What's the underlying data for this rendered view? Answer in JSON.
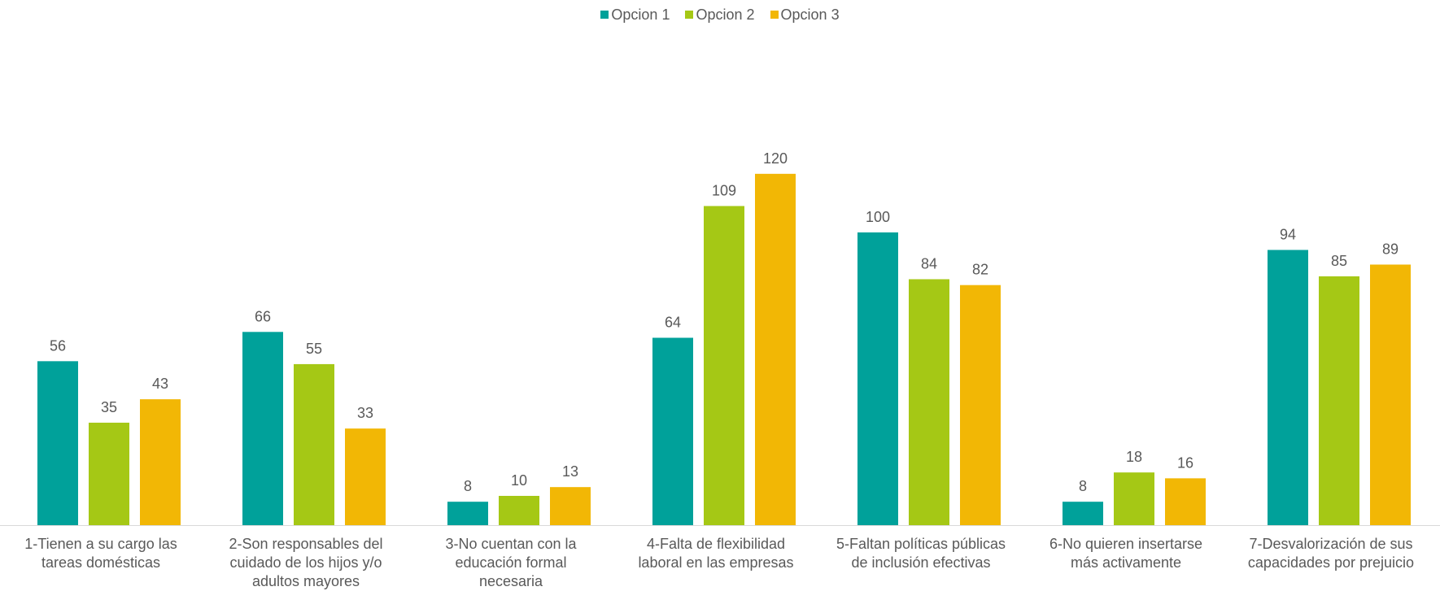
{
  "chart_data": {
    "type": "bar",
    "categories": [
      [
        "1-Tienen a su cargo las",
        "tareas domésticas"
      ],
      [
        "2-Son responsables del",
        "cuidado de los hijos y/o",
        "adultos mayores"
      ],
      [
        "3-No cuentan con la",
        "educación formal",
        "necesaria"
      ],
      [
        "4-Falta de flexibilidad",
        "laboral en las empresas"
      ],
      [
        "5-Faltan políticas públicas",
        "de inclusión efectivas"
      ],
      [
        "6-No quieren insertarse",
        "más activamente"
      ],
      [
        "7-Desvalorización de sus",
        "capacidades por prejuicio"
      ]
    ],
    "series": [
      {
        "name": "Opcion 1",
        "color": "#00A19A",
        "values": [
          56,
          66,
          8,
          64,
          100,
          8,
          94
        ]
      },
      {
        "name": "Opcion 2",
        "color": "#A5C815",
        "values": [
          35,
          55,
          10,
          109,
          84,
          18,
          85
        ]
      },
      {
        "name": "Opcion 3",
        "color": "#F2B705",
        "values": [
          43,
          33,
          13,
          120,
          82,
          16,
          89
        ]
      }
    ],
    "ylim": [
      0,
      138
    ],
    "grid": false,
    "legend": "top-center",
    "data_labels": true
  }
}
